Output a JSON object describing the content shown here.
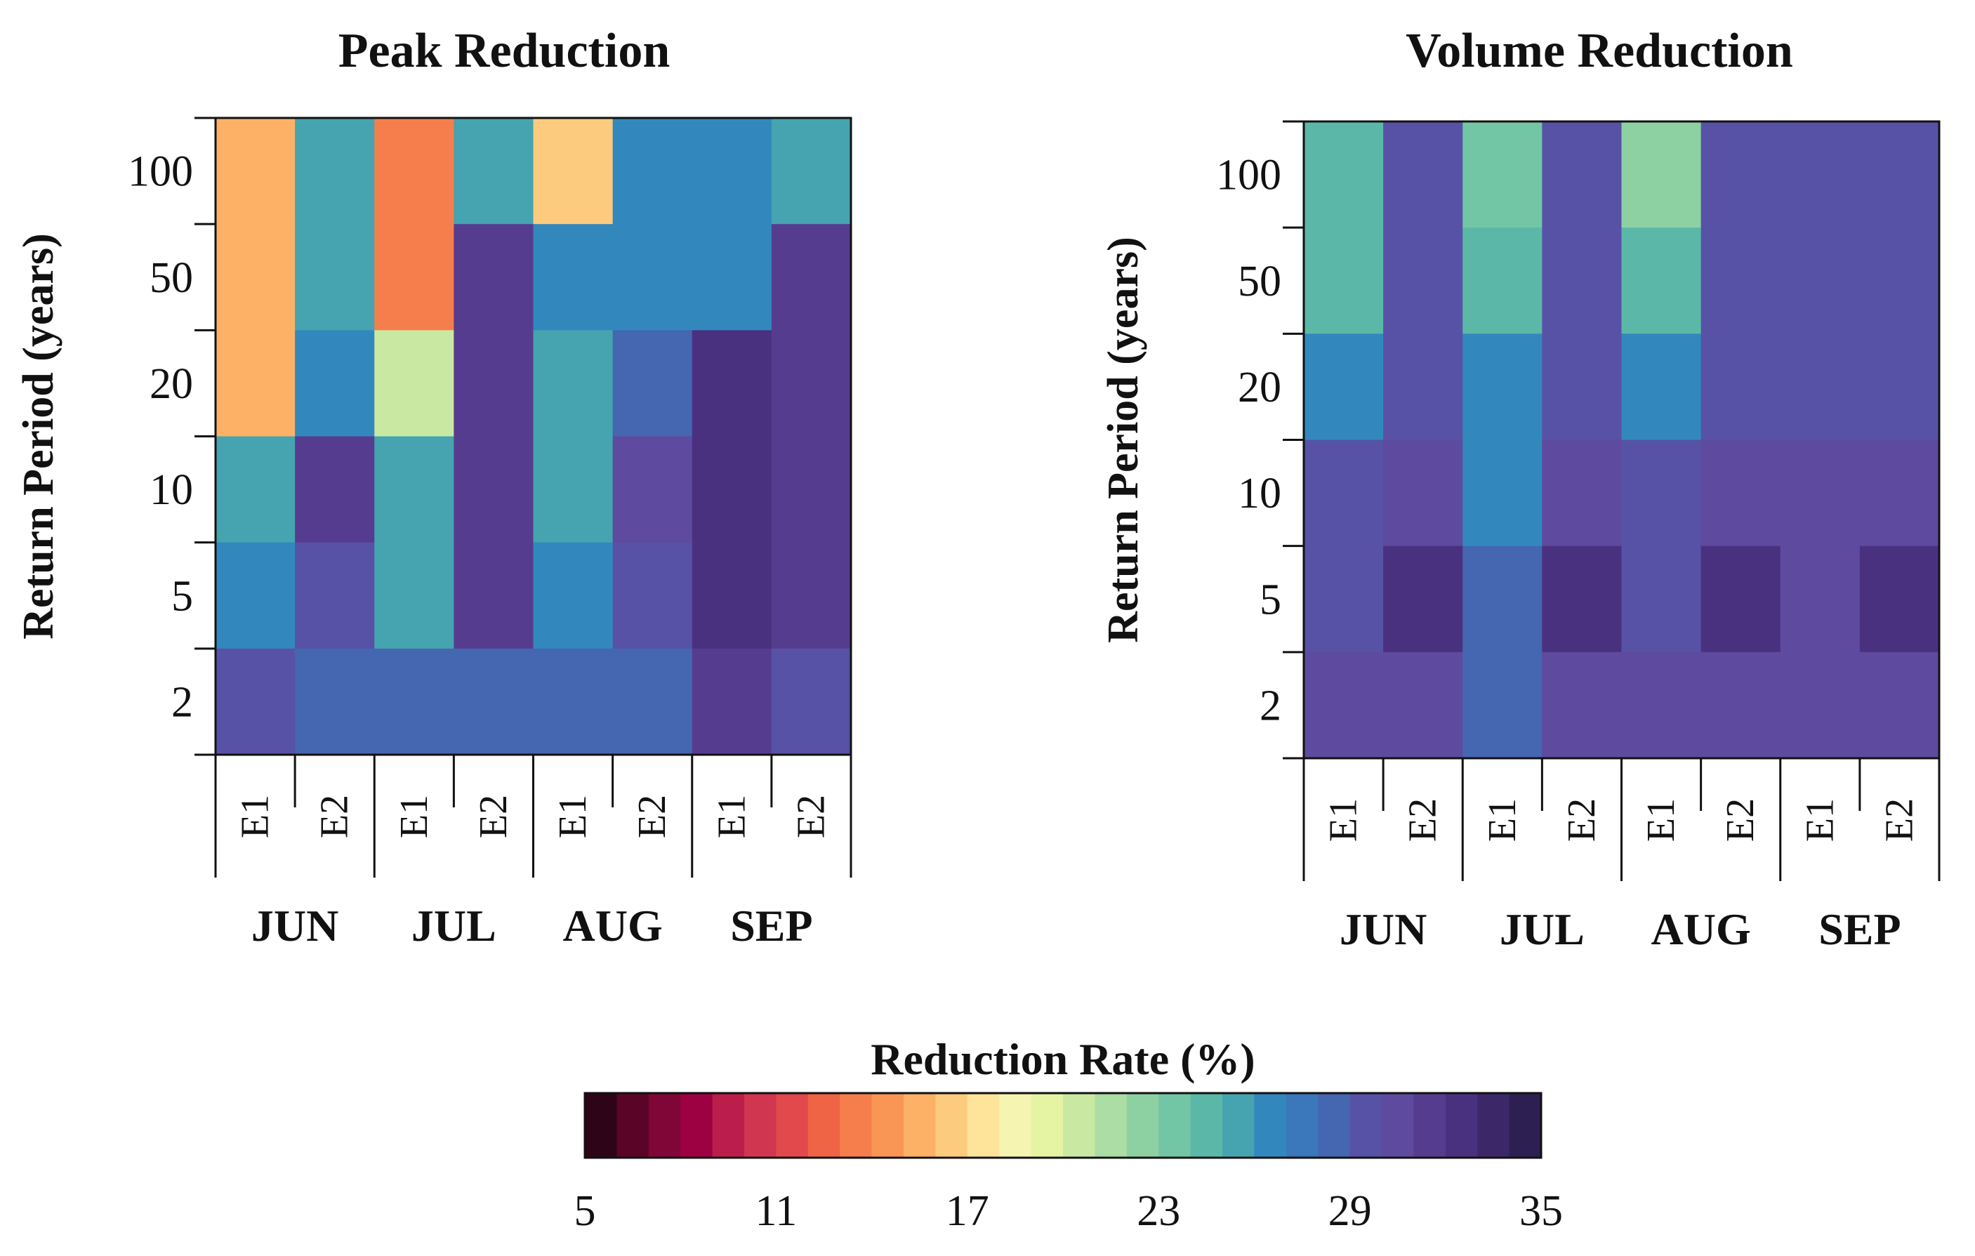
{
  "chart_data": [
    {
      "type": "heatmap",
      "title": "Peak Reduction",
      "ylabel": "Return Period (years)",
      "rows": [
        "100",
        "50",
        "20",
        "10",
        "5",
        "2"
      ],
      "columns": [
        "E1",
        "E2",
        "E1",
        "E2",
        "E1",
        "E2",
        "E1",
        "E2"
      ],
      "groups": [
        "JUN",
        "JUL",
        "AUG",
        "SEP"
      ],
      "values": [
        [
          15.5,
          25.5,
          13.5,
          25.5,
          16,
          26,
          26,
          25
        ],
        [
          15.5,
          25.5,
          13.5,
          31,
          26,
          26,
          26,
          31
        ],
        [
          15.5,
          26,
          20.5,
          31,
          25.5,
          28.5,
          32,
          31
        ],
        [
          25.5,
          31,
          25.5,
          31,
          25.5,
          30.5,
          32,
          31
        ],
        [
          26,
          29.5,
          25.5,
          31,
          26.5,
          29.5,
          32,
          31
        ],
        [
          29.5,
          28.5,
          28.5,
          28.5,
          28.5,
          28.5,
          31,
          29
        ]
      ]
    },
    {
      "type": "heatmap",
      "title": "Volume Reduction",
      "ylabel": "Return Period (years)",
      "rows": [
        "100",
        "50",
        "20",
        "10",
        "5",
        "2"
      ],
      "columns": [
        "E1",
        "E2",
        "E1",
        "E2",
        "E1",
        "E2",
        "E1",
        "E2"
      ],
      "groups": [
        "JUN",
        "JUL",
        "AUG",
        "SEP"
      ],
      "values": [
        [
          24.5,
          29,
          23.5,
          29,
          22.5,
          29,
          29,
          29
        ],
        [
          24.5,
          29,
          24.5,
          29.5,
          24.5,
          29,
          29,
          29
        ],
        [
          26.5,
          29.5,
          26,
          29.5,
          26,
          29.5,
          29,
          29.5
        ],
        [
          29.5,
          30.5,
          26.5,
          30.5,
          29,
          30.5,
          30,
          30.5
        ],
        [
          29.5,
          32,
          28.5,
          32,
          29.5,
          32,
          30.5,
          32
        ],
        [
          30.5,
          30.5,
          28.5,
          30.5,
          30.5,
          30.5,
          30.5,
          30.5
        ]
      ]
    }
  ],
  "colorbar": {
    "title": "Reduction Rate (%)",
    "min": 5,
    "max": 35,
    "step": 1,
    "ticks": [
      "5",
      "11",
      "17",
      "23",
      "29",
      "35"
    ],
    "colors": [
      "#2d0418",
      "#5a0527",
      "#800637",
      "#9e0142",
      "#bb1e4a",
      "#d0364f",
      "#e1494d",
      "#ee6445",
      "#f67e4c",
      "#f99656",
      "#fcb167",
      "#fdcb7e",
      "#fde49a",
      "#f5f4b0",
      "#e5f4a3",
      "#c9e9a2",
      "#abdda4",
      "#8dd1a3",
      "#72c6a5",
      "#5bb8a8",
      "#45a4b0",
      "#3288bd",
      "#3a77bb",
      "#4566b1",
      "#5752a6",
      "#5e4a9e",
      "#563c8f",
      "#4a3180",
      "#3c2869",
      "#2e1f53"
    ]
  }
}
